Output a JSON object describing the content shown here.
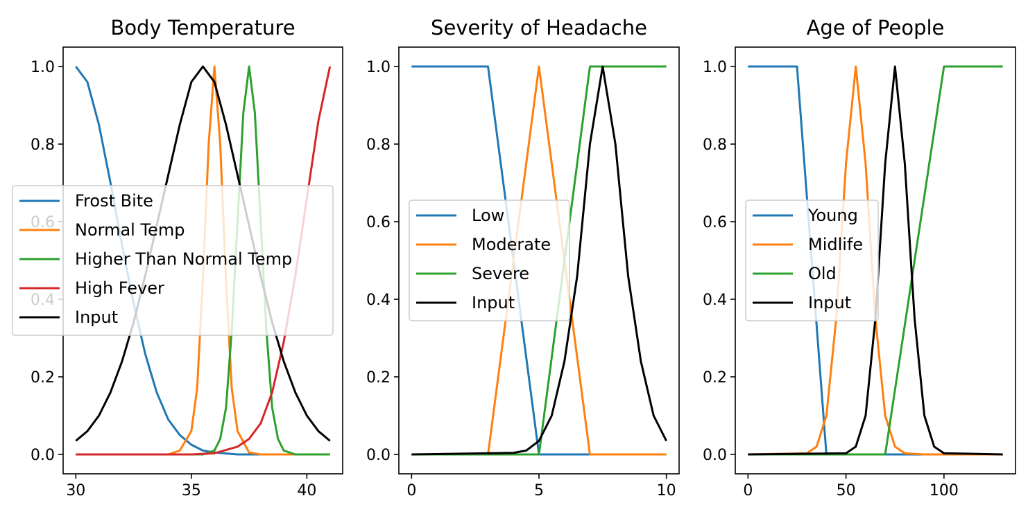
{
  "chart_data": [
    {
      "type": "line",
      "title": "Body Temperature",
      "xlabel": "",
      "ylabel": "",
      "xlim": [
        29.45,
        41.55
      ],
      "ylim": [
        -0.05,
        1.05
      ],
      "xticks": [
        30,
        35,
        40
      ],
      "xtick_labels": [
        "30",
        "35",
        "40"
      ],
      "yticks": [
        0.0,
        0.2,
        0.4,
        0.6,
        0.8,
        1.0
      ],
      "ytick_labels": [
        "0.0",
        "0.2",
        "0.4",
        "0.6",
        "0.8",
        "1.0"
      ],
      "grid": false,
      "legend_placement": "center-left",
      "series": [
        {
          "name": "Frost Bite",
          "color": "#1f77b4",
          "x": [
            30,
            30.5,
            31,
            31.5,
            32,
            32.5,
            33,
            33.5,
            34,
            34.5,
            35,
            35.5,
            36,
            37,
            38,
            39,
            40,
            41
          ],
          "y": [
            1.0,
            0.96,
            0.85,
            0.7,
            0.54,
            0.39,
            0.26,
            0.16,
            0.09,
            0.05,
            0.025,
            0.01,
            0.005,
            0.0,
            0.0,
            0.0,
            0.0,
            0.0
          ]
        },
        {
          "name": "Normal Temp",
          "color": "#ff7f0e",
          "x": [
            30,
            33,
            34,
            34.5,
            35,
            35.25,
            35.5,
            35.75,
            36,
            36.25,
            36.5,
            36.75,
            37,
            37.5,
            38,
            41
          ],
          "y": [
            0.0,
            0.0,
            0.0,
            0.01,
            0.06,
            0.17,
            0.45,
            0.8,
            1.0,
            0.8,
            0.45,
            0.17,
            0.06,
            0.005,
            0.0,
            0.0
          ]
        },
        {
          "name": "Higher Than Normal Temp",
          "color": "#2ca02c",
          "x": [
            30,
            35.5,
            36,
            36.25,
            36.5,
            36.75,
            37,
            37.25,
            37.5,
            37.75,
            38,
            38.25,
            38.5,
            38.75,
            39,
            39.5,
            41
          ],
          "y": [
            0.0,
            0.0,
            0.01,
            0.04,
            0.12,
            0.32,
            0.6,
            0.88,
            1.0,
            0.88,
            0.6,
            0.32,
            0.12,
            0.04,
            0.01,
            0.0,
            0.0
          ]
        },
        {
          "name": "High Fever",
          "color": "#d62728",
          "x": [
            30,
            35,
            36,
            37,
            37.5,
            38,
            38.5,
            39,
            39.5,
            40,
            40.5,
            41
          ],
          "y": [
            0.0,
            0.0,
            0.003,
            0.02,
            0.04,
            0.08,
            0.16,
            0.29,
            0.46,
            0.66,
            0.86,
            1.0
          ]
        },
        {
          "name": "Input",
          "color": "#000000",
          "x": [
            30,
            30.5,
            31,
            31.5,
            32,
            32.5,
            33,
            33.5,
            34,
            34.5,
            35,
            35.5,
            36,
            36.5,
            37,
            37.5,
            38,
            38.5,
            39,
            39.5,
            40,
            40.5,
            41
          ],
          "y": [
            0.035,
            0.06,
            0.1,
            0.16,
            0.24,
            0.34,
            0.46,
            0.59,
            0.72,
            0.85,
            0.96,
            1.0,
            0.96,
            0.85,
            0.72,
            0.59,
            0.46,
            0.34,
            0.24,
            0.16,
            0.1,
            0.06,
            0.035
          ]
        }
      ]
    },
    {
      "type": "line",
      "title": "Severity of Headache",
      "xlabel": "",
      "ylabel": "",
      "xlim": [
        -0.5,
        10.5
      ],
      "ylim": [
        -0.05,
        1.05
      ],
      "xticks": [
        0,
        5,
        10
      ],
      "xtick_labels": [
        "0",
        "5",
        "10"
      ],
      "yticks": [
        0.0,
        0.2,
        0.4,
        0.6,
        0.8,
        1.0
      ],
      "ytick_labels": [
        "0.0",
        "0.2",
        "0.4",
        "0.6",
        "0.8",
        "1.0"
      ],
      "grid": false,
      "legend_placement": "center-left",
      "series": [
        {
          "name": "Low",
          "color": "#1f77b4",
          "x": [
            0,
            3,
            5,
            10
          ],
          "y": [
            1,
            1,
            0,
            0
          ]
        },
        {
          "name": "Moderate",
          "color": "#ff7f0e",
          "x": [
            0,
            3,
            5,
            7,
            10
          ],
          "y": [
            0,
            0,
            1,
            0,
            0
          ]
        },
        {
          "name": "Severe",
          "color": "#2ca02c",
          "x": [
            0,
            5,
            7,
            10
          ],
          "y": [
            0,
            0,
            1,
            1
          ]
        },
        {
          "name": "Input",
          "color": "#000000",
          "x": [
            0,
            4,
            4.5,
            5,
            5.5,
            6,
            6.5,
            7,
            7.5,
            8,
            8.5,
            9,
            9.5,
            10
          ],
          "y": [
            0,
            0.004,
            0.01,
            0.035,
            0.1,
            0.24,
            0.46,
            0.8,
            1.0,
            0.8,
            0.46,
            0.24,
            0.1,
            0.035
          ]
        }
      ]
    },
    {
      "type": "line",
      "title": "Age of People",
      "xlabel": "",
      "ylabel": "",
      "xlim": [
        -6.5,
        136.5
      ],
      "ylim": [
        -0.05,
        1.05
      ],
      "xticks": [
        0,
        50,
        100
      ],
      "xtick_labels": [
        "0",
        "50",
        "100"
      ],
      "yticks": [
        0.0,
        0.2,
        0.4,
        0.6,
        0.8,
        1.0
      ],
      "ytick_labels": [
        "0.0",
        "0.2",
        "0.4",
        "0.6",
        "0.8",
        "1.0"
      ],
      "grid": false,
      "legend_placement": "center-left",
      "series": [
        {
          "name": "Young",
          "color": "#1f77b4",
          "x": [
            0,
            25,
            40,
            130
          ],
          "y": [
            1,
            1,
            0,
            0
          ]
        },
        {
          "name": "Midlife",
          "color": "#ff7f0e",
          "x": [
            0,
            30,
            35,
            40,
            45,
            50,
            55,
            60,
            65,
            70,
            75,
            80,
            90,
            130
          ],
          "y": [
            0,
            0.003,
            0.02,
            0.1,
            0.35,
            0.75,
            1.0,
            0.75,
            0.35,
            0.1,
            0.02,
            0.003,
            0,
            0
          ]
        },
        {
          "name": "Old",
          "color": "#2ca02c",
          "x": [
            0,
            70,
            100,
            130
          ],
          "y": [
            0,
            0,
            1,
            1
          ]
        },
        {
          "name": "Input",
          "color": "#000000",
          "x": [
            0,
            50,
            55,
            60,
            65,
            70,
            75,
            80,
            85,
            90,
            95,
            100,
            130
          ],
          "y": [
            0,
            0.003,
            0.02,
            0.1,
            0.35,
            0.75,
            1.0,
            0.75,
            0.35,
            0.1,
            0.02,
            0.003,
            0
          ]
        }
      ]
    }
  ]
}
